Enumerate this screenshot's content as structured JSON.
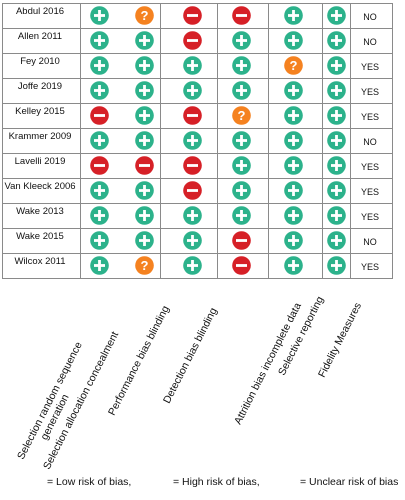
{
  "colors": {
    "low": "#2cb28b",
    "high": "#d62027",
    "unclear": "#f58220",
    "grid": "#8a8a8a"
  },
  "studies": [
    "Abdul 2016",
    "Allen 2011",
    "Fey 2010",
    "Joffe 2019",
    "Kelley 2015",
    "Krammer 2009",
    "Lavelli 2019",
    "Van Kleeck 2006",
    "Wake 2013",
    "Wake 2015",
    "Wilcox 2011"
  ],
  "domains": [
    {
      "line1": "Selection random sequence",
      "line2": "generation"
    },
    {
      "line1": "Selection allocation concealment",
      "line2": ""
    },
    {
      "line1": "Performance bias blinding",
      "line2": ""
    },
    {
      "line1": "Detection bias blinding",
      "line2": ""
    },
    {
      "line1": "Attrition bias incomplete data",
      "line2": ""
    },
    {
      "line1": "Selective reporting",
      "line2": ""
    },
    {
      "line1": "Fidelity Measures",
      "line2": ""
    }
  ],
  "ratings": [
    [
      "low",
      "unclear",
      "high",
      "high",
      "low",
      "low"
    ],
    [
      "low",
      "low",
      "high",
      "low",
      "low",
      "low"
    ],
    [
      "low",
      "low",
      "low",
      "low",
      "unclear",
      "low"
    ],
    [
      "low",
      "low",
      "low",
      "low",
      "low",
      "low"
    ],
    [
      "high",
      "low",
      "high",
      "unclear",
      "low",
      "low"
    ],
    [
      "low",
      "low",
      "low",
      "low",
      "low",
      "low"
    ],
    [
      "high",
      "high",
      "high",
      "low",
      "low",
      "low"
    ],
    [
      "low",
      "low",
      "high",
      "low",
      "low",
      "low"
    ],
    [
      "low",
      "low",
      "low",
      "low",
      "low",
      "low"
    ],
    [
      "low",
      "low",
      "low",
      "high",
      "low",
      "low"
    ],
    [
      "low",
      "unclear",
      "low",
      "high",
      "low",
      "low"
    ]
  ],
  "fidelity": [
    "NO",
    "NO",
    "YES",
    "YES",
    "YES",
    "NO",
    "YES",
    "YES",
    "YES",
    "NO",
    "YES"
  ],
  "legend": {
    "low_label": "= Low risk of bias,",
    "high_label": "= High risk of bias,",
    "unclear_label": "= Unclear risk of bias"
  }
}
